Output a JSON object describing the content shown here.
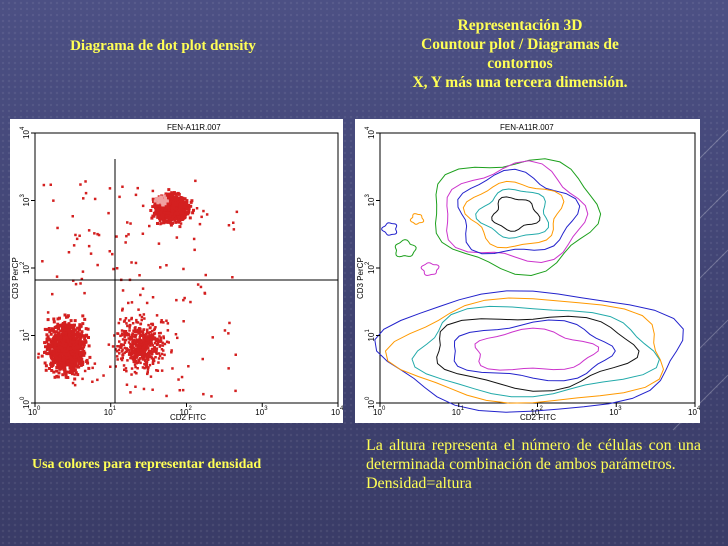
{
  "slide": {
    "title_left": "Diagrama de dot plot density",
    "title_right": [
      "Representación 3D",
      "Countour plot / Diagramas de",
      "contornos",
      "X, Y más una tercera dimensión."
    ],
    "note_left": "Usa colores para representar densidad",
    "note_right": [
      "La altura representa el número de células con una determinada combinación de ambos parámetros.",
      "Densidad=altura"
    ]
  },
  "plot_left": {
    "header": "FEN-A11R.007",
    "xlabel": "CD2 FITC",
    "ylabel": "CD3 PerCP",
    "x_ticks": [
      "0",
      "1",
      "2",
      "3",
      "4"
    ],
    "y_ticks": [
      "0",
      "1",
      "2",
      "3",
      "4"
    ],
    "tick_base": "10",
    "dot_color": "#d42020"
  },
  "plot_right": {
    "header": "FEN-A11R.007",
    "xlabel": "CD2 FITC",
    "ylabel": "CD3 PerCP",
    "x_ticks": [
      "0",
      "1",
      "2",
      "3",
      "4"
    ],
    "y_ticks": [
      "0",
      "1",
      "2",
      "3",
      "4"
    ],
    "tick_base": "10",
    "contour_colors": [
      "#1ca01c",
      "#cc33cc",
      "#2222cc",
      "#ff9900",
      "#22aaaa",
      "#111111",
      "#2222cc",
      "#cc33cc"
    ]
  }
}
